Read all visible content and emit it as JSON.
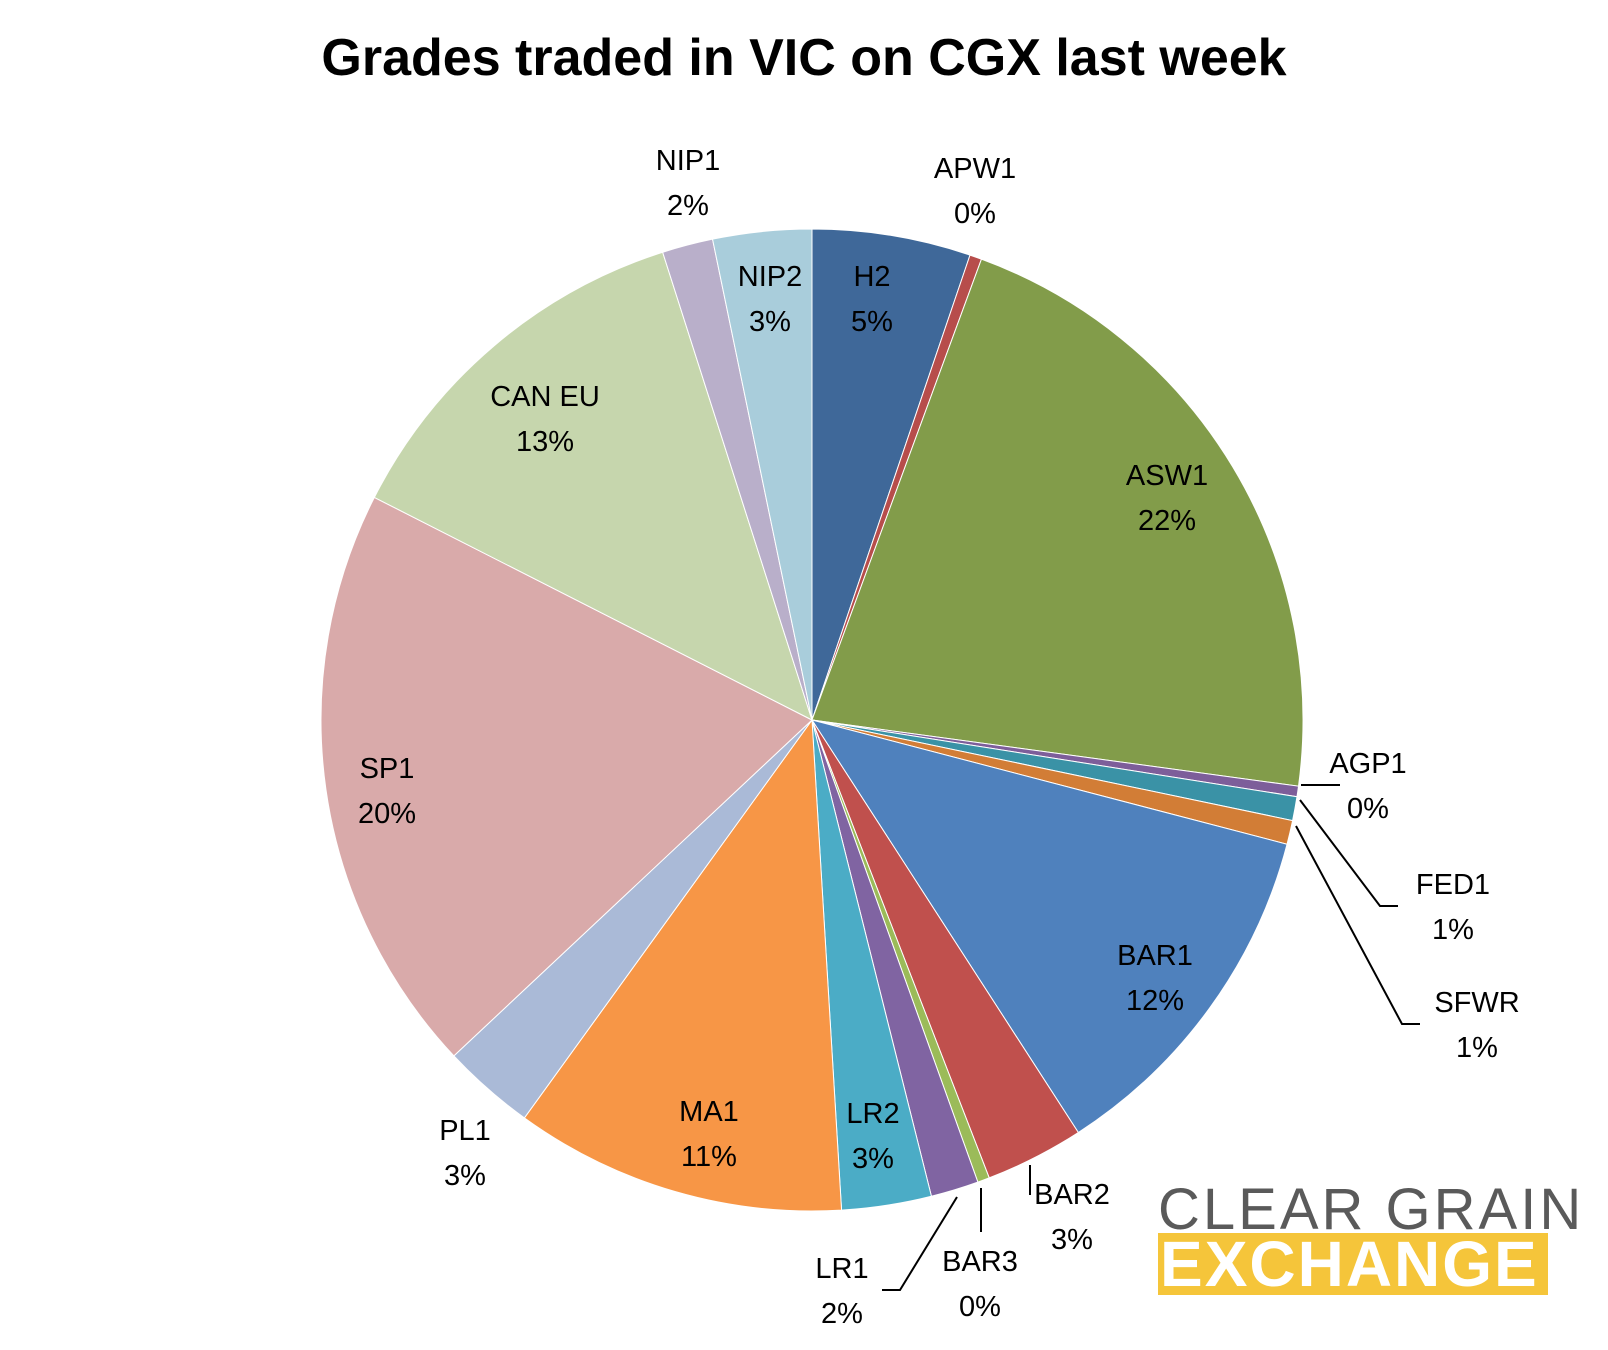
{
  "chart_data": {
    "type": "pie",
    "title": "Grades traded in VIC on CGX last week",
    "slices": [
      {
        "label": "H2",
        "pct": "5%",
        "value": 5.3,
        "color": "#3f6899"
      },
      {
        "label": "APW1",
        "pct": "0%",
        "value": 0.4,
        "color": "#b74d4b"
      },
      {
        "label": "ASW1",
        "pct": "22%",
        "value": 21.9,
        "color": "#829c4a"
      },
      {
        "label": "AGP1",
        "pct": "0%",
        "value": 0.35,
        "color": "#7d5e9a"
      },
      {
        "label": "FED1",
        "pct": "1%",
        "value": 0.8,
        "color": "#3a92a6"
      },
      {
        "label": "SFWR",
        "pct": "1%",
        "value": 0.8,
        "color": "#d27d36"
      },
      {
        "label": "BAR1",
        "pct": "12%",
        "value": 12.0,
        "color": "#4f81bd"
      },
      {
        "label": "BAR2",
        "pct": "3%",
        "value": 3.3,
        "color": "#c0504d"
      },
      {
        "label": "BAR3",
        "pct": "0%",
        "value": 0.4,
        "color": "#9bbb59"
      },
      {
        "label": "LR1",
        "pct": "2%",
        "value": 1.6,
        "color": "#8064a2"
      },
      {
        "label": "LR2",
        "pct": "3%",
        "value": 3.0,
        "color": "#4bacc6"
      },
      {
        "label": "MA1",
        "pct": "11%",
        "value": 11.1,
        "color": "#f79646"
      },
      {
        "label": "PL1",
        "pct": "3%",
        "value": 3.1,
        "color": "#aabad7"
      },
      {
        "label": "SP1",
        "pct": "20%",
        "value": 19.8,
        "color": "#d9aaaa"
      },
      {
        "label": "CAN EU",
        "pct": "13%",
        "value": 12.8,
        "color": "#c6d6ad"
      },
      {
        "label": "NIP1",
        "pct": "2%",
        "value": 1.7,
        "color": "#b9afca"
      },
      {
        "label": "NIP2",
        "pct": "3%",
        "value": 3.3,
        "color": "#a9cddb"
      }
    ]
  },
  "logo": {
    "line1": "CLEAR GRAIN",
    "line2": "EXCHANGE"
  }
}
